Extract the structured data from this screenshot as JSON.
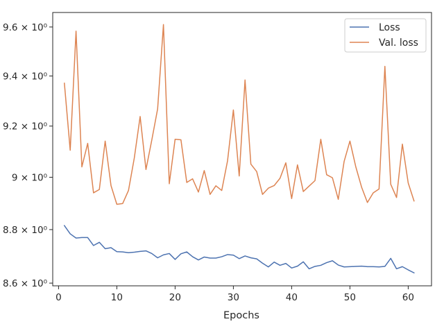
{
  "chart_data": {
    "type": "line",
    "title": "",
    "xlabel": "Epochs",
    "ylabel": "",
    "y_scale": "log",
    "grid": false,
    "legend_position": "top-right",
    "xlim": [
      -1.0,
      64.0
    ],
    "ylim": [
      8.59,
      9.66
    ],
    "x_ticks": [
      0,
      10,
      20,
      30,
      40,
      50,
      60
    ],
    "x_tick_labels": [
      "0",
      "10",
      "20",
      "30",
      "40",
      "50",
      "60"
    ],
    "y_ticks": [
      8.6,
      8.8,
      9.0,
      9.2,
      9.4,
      9.6
    ],
    "y_tick_labels": [
      "8.6 × 10⁰",
      "8.8 × 10⁰",
      "9 × 10⁰",
      "9.2 × 10⁰",
      "9.4 × 10⁰",
      "9.6 × 10⁰"
    ],
    "x": [
      1,
      2,
      3,
      4,
      5,
      6,
      7,
      8,
      9,
      10,
      11,
      12,
      13,
      14,
      15,
      16,
      17,
      18,
      19,
      20,
      21,
      22,
      23,
      24,
      25,
      26,
      27,
      28,
      29,
      30,
      31,
      32,
      33,
      34,
      35,
      36,
      37,
      38,
      39,
      40,
      41,
      42,
      43,
      44,
      45,
      46,
      47,
      48,
      49,
      50,
      51,
      52,
      53,
      54,
      55,
      56,
      57,
      58,
      59,
      60,
      61
    ],
    "series": [
      {
        "name": "Loss",
        "color": "#4c72b0",
        "values": [
          8.815,
          8.784,
          8.768,
          8.77,
          8.77,
          8.74,
          8.752,
          8.728,
          8.732,
          8.717,
          8.716,
          8.713,
          8.715,
          8.718,
          8.72,
          8.71,
          8.694,
          8.705,
          8.71,
          8.688,
          8.709,
          8.716,
          8.698,
          8.686,
          8.697,
          8.693,
          8.693,
          8.698,
          8.706,
          8.704,
          8.691,
          8.701,
          8.694,
          8.69,
          8.674,
          8.66,
          8.678,
          8.666,
          8.673,
          8.656,
          8.663,
          8.679,
          8.653,
          8.662,
          8.666,
          8.676,
          8.683,
          8.667,
          8.66,
          8.661,
          8.662,
          8.663,
          8.661,
          8.661,
          8.66,
          8.662,
          8.692,
          8.653,
          8.661,
          8.649,
          8.638
        ]
      },
      {
        "name": "Val. loss",
        "color": "#dd8452",
        "values": [
          9.371,
          9.105,
          9.583,
          9.04,
          9.132,
          8.94,
          8.953,
          9.141,
          8.968,
          8.896,
          8.899,
          8.949,
          9.075,
          9.238,
          9.03,
          9.145,
          9.268,
          9.61,
          8.975,
          9.148,
          9.146,
          8.98,
          8.994,
          8.943,
          9.026,
          8.934,
          8.967,
          8.949,
          9.064,
          9.264,
          9.005,
          9.384,
          9.051,
          9.022,
          8.934,
          8.958,
          8.968,
          8.996,
          9.056,
          8.918,
          9.048,
          8.945,
          8.966,
          8.987,
          9.148,
          9.01,
          8.998,
          8.915,
          9.061,
          9.141,
          9.041,
          8.962,
          8.903,
          8.94,
          8.955,
          9.439,
          8.973,
          8.922,
          9.129,
          8.978,
          8.909
        ]
      }
    ]
  }
}
